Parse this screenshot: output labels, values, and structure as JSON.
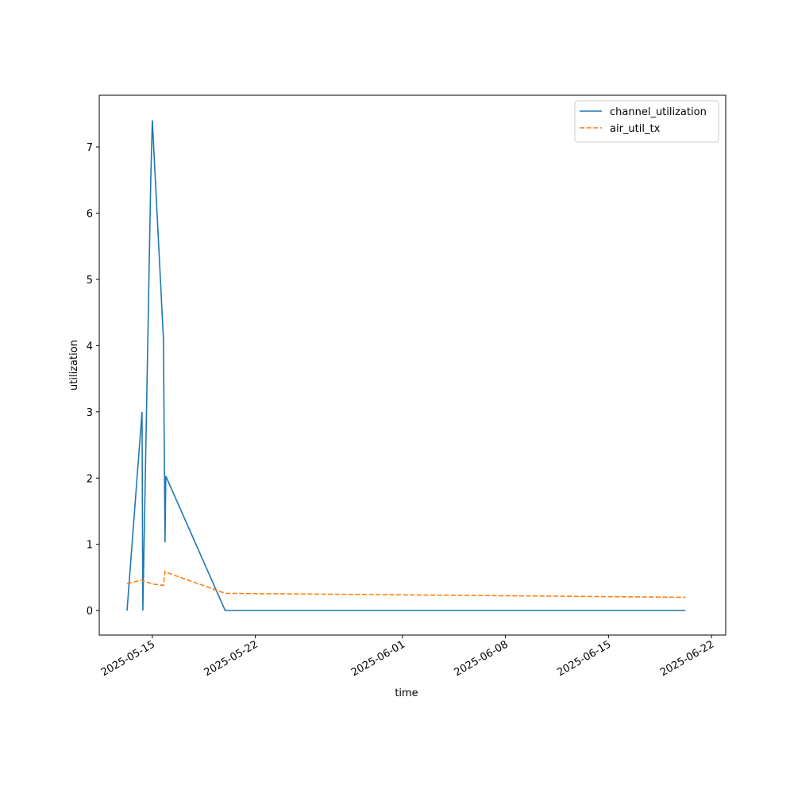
{
  "chart_data": {
    "type": "line",
    "xlabel": "time",
    "ylabel": "utilization",
    "x": [
      "2025-05-13T06:45",
      "2025-05-14T07:10",
      "2025-05-14T08:30",
      "2025-05-14T21:25",
      "2025-05-15T00:00",
      "2025-05-15T18:05",
      "2025-05-15T20:40",
      "2025-05-15T22:00",
      "2025-05-19T22:50",
      "2025-06-20T05:45"
    ],
    "series": [
      {
        "name": "channel_utilization",
        "color": "#1f77b4",
        "linestyle": "solid",
        "values": [
          0,
          3.0,
          0,
          6.5,
          7.4,
          4.1,
          1.03,
          2.03,
          0,
          0
        ]
      },
      {
        "name": "air_util_tx",
        "color": "#ff7f0e",
        "linestyle": "dashed",
        "values": [
          0.41,
          0.46,
          0.45,
          0.41,
          0.4,
          0.38,
          0.59,
          0.58,
          0.26,
          0.2
        ]
      }
    ],
    "xlim": [
      "2025-05-11T09:24",
      "2025-06-22T23:15"
    ],
    "xticks": [
      "2025-05-15",
      "2025-05-22",
      "2025-06-01",
      "2025-06-08",
      "2025-06-15",
      "2025-06-22"
    ],
    "ylim": [
      -0.37,
      7.78
    ],
    "yticks": [
      0,
      1,
      2,
      3,
      4,
      5,
      6,
      7
    ],
    "legend": "upper right"
  }
}
